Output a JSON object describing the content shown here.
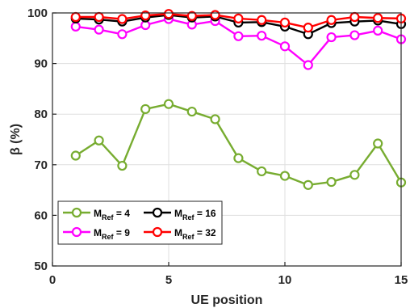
{
  "chart_data": {
    "type": "line",
    "xlabel": "UE position",
    "ylabel": "β (%)",
    "xlim": [
      0,
      15
    ],
    "ylim": [
      50,
      100
    ],
    "xticks": [
      0,
      5,
      10,
      15
    ],
    "yticks": [
      50,
      60,
      70,
      80,
      90,
      100
    ],
    "grid": true,
    "legend_placement": "bottom-left",
    "x": [
      1,
      2,
      3,
      4,
      5,
      6,
      7,
      8,
      9,
      10,
      11,
      12,
      13,
      14,
      15
    ],
    "series": [
      {
        "name": "M_Ref = 4",
        "label_main": "M",
        "label_sub": "Ref",
        "label_tail": " = 4",
        "color": "#77ac30",
        "values": [
          71.8,
          74.8,
          69.8,
          81.0,
          82.0,
          80.5,
          79.0,
          71.3,
          68.7,
          67.8,
          66.0,
          66.6,
          68.0,
          74.2,
          66.5
        ]
      },
      {
        "name": "M_Ref = 9",
        "label_main": "M",
        "label_sub": "Ref",
        "label_tail": " = 9",
        "color": "#ff00ff",
        "values": [
          97.3,
          96.7,
          95.8,
          97.6,
          98.8,
          97.7,
          98.4,
          95.4,
          95.5,
          93.4,
          89.7,
          95.2,
          95.6,
          96.5,
          94.8
        ]
      },
      {
        "name": "M_Ref = 16",
        "label_main": "M",
        "label_sub": "Ref",
        "label_tail": " = 16",
        "color": "#000000",
        "values": [
          98.9,
          98.7,
          98.3,
          99.1,
          99.6,
          99.1,
          99.3,
          98.1,
          98.2,
          97.3,
          95.8,
          98.0,
          98.3,
          98.5,
          97.8
        ]
      },
      {
        "name": "M_Ref = 32",
        "label_main": "M",
        "label_sub": "Ref",
        "label_tail": " = 32",
        "color": "#ff0000",
        "values": [
          99.2,
          99.2,
          98.8,
          99.5,
          99.8,
          99.4,
          99.6,
          98.9,
          98.6,
          98.1,
          97.1,
          98.6,
          99.2,
          99.0,
          98.9
        ]
      }
    ]
  }
}
